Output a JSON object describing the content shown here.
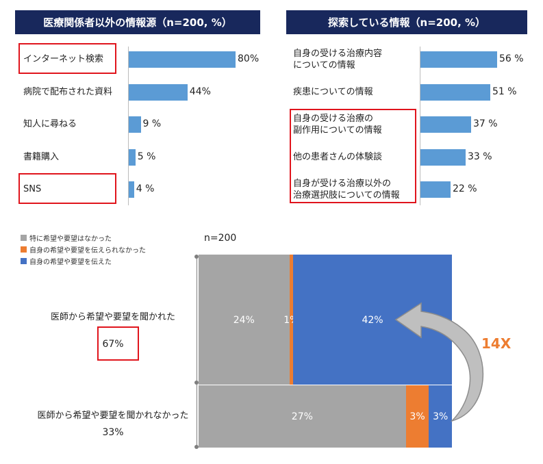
{
  "left_panel": {
    "title": "医療関係者以外の情報源（n=200, %）",
    "items": [
      {
        "label": "インターネット検索",
        "value": 80,
        "value_label": "80%"
      },
      {
        "label": "病院で配布された資料",
        "value": 44,
        "value_label": "44%"
      },
      {
        "label": "知人に尋ねる",
        "value": 9,
        "value_label": "9 %"
      },
      {
        "label": "書籍購入",
        "value": 5,
        "value_label": "5 %"
      },
      {
        "label": "SNS",
        "value": 4,
        "value_label": "4 %"
      }
    ]
  },
  "right_panel": {
    "title": "探索している情報（n=200, %）",
    "items": [
      {
        "label_lines": [
          "自身の受ける治療内容",
          "についての情報"
        ],
        "value": 56,
        "value_label": "56 %"
      },
      {
        "label_lines": [
          "疾患についての情報"
        ],
        "value": 51,
        "value_label": "51 %"
      },
      {
        "label_lines": [
          "自身の受ける治療の",
          "副作用についての情報"
        ],
        "value": 37,
        "value_label": "37 %"
      },
      {
        "label_lines": [
          "他の患者さんの体験談"
        ],
        "value": 33,
        "value_label": "33 %"
      },
      {
        "label_lines": [
          "自身が受ける治療以外の",
          "治療選択肢についての情報"
        ],
        "value": 22,
        "value_label": "22 %"
      }
    ]
  },
  "bottom_chart": {
    "n_label": "n=200",
    "legend": [
      {
        "label": "特に希望や要望はなかった",
        "color": "#a5a5a5"
      },
      {
        "label": "自身の希望や要望を伝えられなかった",
        "color": "#ed7d31"
      },
      {
        "label": "自身の希望や要望を伝えた",
        "color": "#4472c4"
      }
    ],
    "rows": [
      {
        "label": "医師から希望や要望を聞かれた",
        "total_label": "67%",
        "total": 67,
        "segments": [
          24,
          1,
          42
        ],
        "segment_labels": [
          "24%",
          "1%",
          "42%"
        ]
      },
      {
        "label": "医師から希望や要望を聞かれなかった",
        "total_label": "33%",
        "total": 33,
        "segments": [
          27,
          3,
          3
        ],
        "segment_labels": [
          "27%",
          "3%",
          "3%"
        ]
      }
    ],
    "callout": "14X"
  },
  "colors": {
    "header_bg": "#18285c",
    "bar_blue": "#5b9bd5",
    "highlight": "#e0141c",
    "callout": "#ed7d31"
  },
  "chart_data": [
    {
      "type": "bar",
      "title": "医療関係者以外の情報源（n=200, %）",
      "categories": [
        "インターネット検索",
        "病院で配布された資料",
        "知人に尋ねる",
        "書籍購入",
        "SNS"
      ],
      "values": [
        80,
        44,
        9,
        5,
        4
      ]
    },
    {
      "type": "bar",
      "title": "探索している情報（n=200, %）",
      "categories": [
        "自身の受ける治療内容についての情報",
        "疾患についての情報",
        "自身の受ける治療の副作用についての情報",
        "他の患者さんの体験談",
        "自身が受ける治療以外の治療選択肢についての情報"
      ],
      "values": [
        56,
        51,
        37,
        33,
        22
      ]
    },
    {
      "type": "bar",
      "title": "",
      "categories": [
        "医師から希望や要望を聞かれた",
        "医師から希望や要望を聞かれなかった"
      ],
      "series": [
        {
          "name": "特に希望や要望はなかった",
          "values": [
            24,
            27
          ]
        },
        {
          "name": "自身の希望や要望を伝えられなかった",
          "values": [
            1,
            3
          ]
        },
        {
          "name": "自身の希望や要望を伝えた",
          "values": [
            42,
            3
          ]
        }
      ]
    }
  ]
}
